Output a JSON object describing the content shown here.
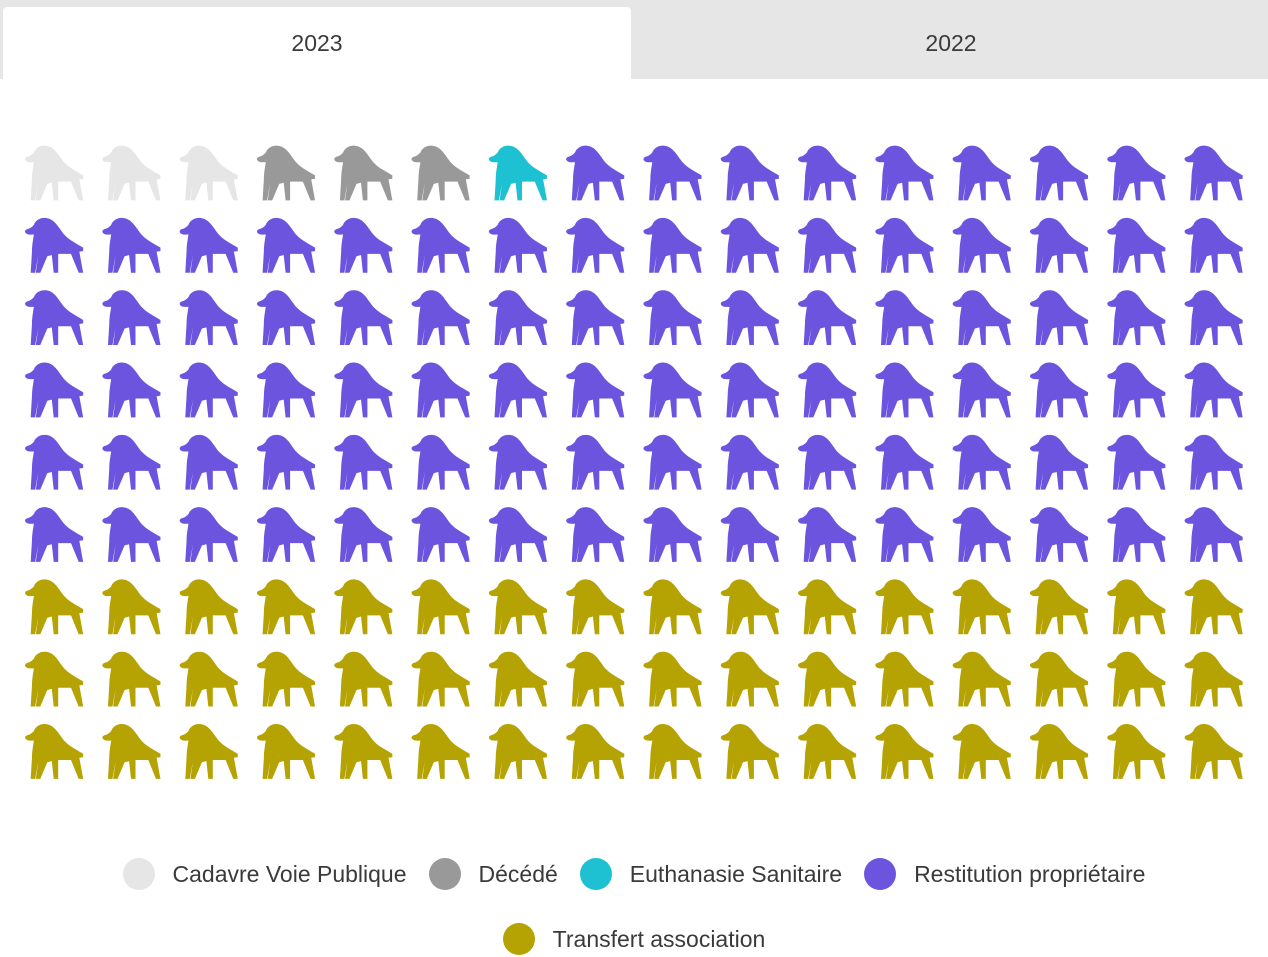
{
  "tabs": [
    {
      "label": "2023",
      "active": true
    },
    {
      "label": "2022",
      "active": false
    }
  ],
  "chart_data": {
    "type": "waffle",
    "unit_icon": "dog-icon",
    "columns": 16,
    "rows": 9,
    "categories": [
      "Cadavre Voie Publique",
      "Décédé",
      "Euthanasie Sanitaire",
      "Restitution propriétaire",
      "Transfert association"
    ],
    "values": [
      3,
      3,
      1,
      89,
      48
    ],
    "colors": [
      "#e6e6e6",
      "#999999",
      "#1ec1d1",
      "#6c54de",
      "#b5a203"
    ]
  },
  "legend": [
    {
      "label": "Cadavre Voie Publique",
      "color": "#e6e6e6"
    },
    {
      "label": "Décédé",
      "color": "#999999"
    },
    {
      "label": "Euthanasie Sanitaire",
      "color": "#1ec1d1"
    },
    {
      "label": "Restitution propriétaire",
      "color": "#6c54de"
    },
    {
      "label": "Transfert association",
      "color": "#b5a203"
    }
  ]
}
